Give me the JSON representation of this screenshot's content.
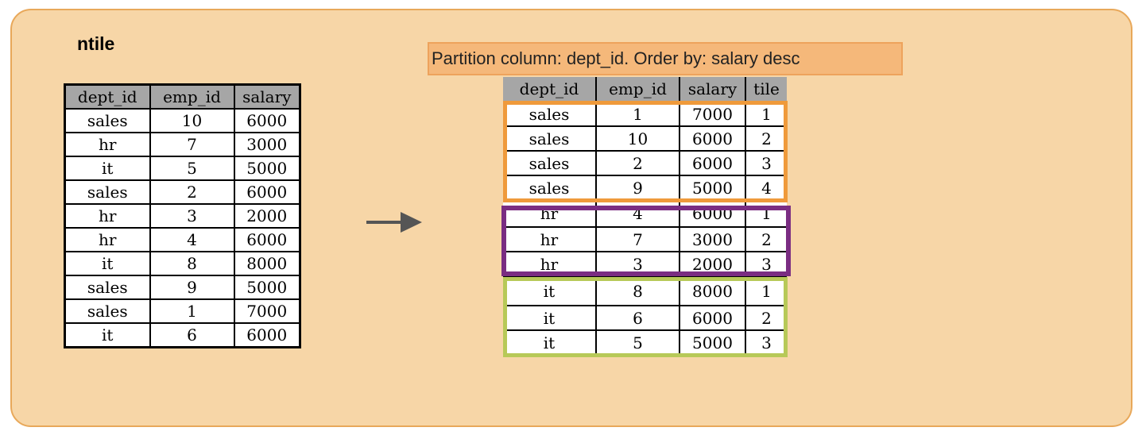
{
  "title": "ntile",
  "note": "Partition column: dept_id.  Order by: salary desc",
  "input_table": {
    "columns": [
      "dept_id",
      "emp_id",
      "salary"
    ],
    "rows": [
      [
        "sales",
        "10",
        "6000"
      ],
      [
        "hr",
        "7",
        "3000"
      ],
      [
        "it",
        "5",
        "5000"
      ],
      [
        "sales",
        "2",
        "6000"
      ],
      [
        "hr",
        "3",
        "2000"
      ],
      [
        "hr",
        "4",
        "6000"
      ],
      [
        "it",
        "8",
        "8000"
      ],
      [
        "sales",
        "9",
        "5000"
      ],
      [
        "sales",
        "1",
        "7000"
      ],
      [
        "it",
        "6",
        "6000"
      ]
    ]
  },
  "output_table": {
    "columns": [
      "dept_id",
      "emp_id",
      "salary",
      "tile"
    ],
    "rows": [
      [
        "sales",
        "1",
        "7000",
        "1"
      ],
      [
        "sales",
        "10",
        "6000",
        "2"
      ],
      [
        "sales",
        "2",
        "6000",
        "3"
      ],
      [
        "sales",
        "9",
        "5000",
        "4"
      ],
      [
        "hr",
        "4",
        "6000",
        "1"
      ],
      [
        "hr",
        "7",
        "3000",
        "2"
      ],
      [
        "hr",
        "3",
        "2000",
        "3"
      ],
      [
        "it",
        "8",
        "8000",
        "1"
      ],
      [
        "it",
        "6",
        "6000",
        "2"
      ],
      [
        "it",
        "5",
        "5000",
        "3"
      ]
    ]
  },
  "colors": {
    "panel_bg": "#f7d6a7",
    "header_bg": "#a6a6a6",
    "sales_group": "#ef9a3b",
    "hr_group": "#7a2d82",
    "it_group": "#b7c958",
    "arrow": "#555555"
  }
}
